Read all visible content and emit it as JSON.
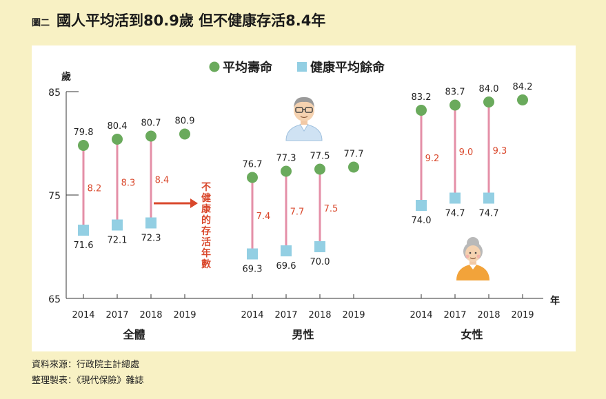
{
  "figure_number": "圖二",
  "title": "國人平均活到80.9歲 但不健康存活8.4年",
  "chart_data": {
    "type": "scatter",
    "y_unit": "歲",
    "x_unit": "年",
    "ylim": [
      65,
      85
    ],
    "y_ticks": [
      65,
      75,
      85
    ],
    "legend": [
      {
        "name": "平均壽命",
        "color": "#6aaa5c",
        "shape": "circle"
      },
      {
        "name": "健康平均餘命",
        "color": "#93cfe3",
        "shape": "square"
      }
    ],
    "groups": [
      {
        "name": "全體",
        "years": [
          "2014",
          "2017",
          "2018",
          "2019"
        ],
        "life_expectancy": [
          79.8,
          80.4,
          80.7,
          80.9
        ],
        "healthy_life_expectancy": [
          71.6,
          72.1,
          72.3,
          null
        ],
        "unhealthy_years": [
          8.2,
          8.3,
          8.4,
          null
        ]
      },
      {
        "name": "男性",
        "years": [
          "2014",
          "2017",
          "2018",
          "2019"
        ],
        "life_expectancy": [
          76.7,
          77.3,
          77.5,
          77.7
        ],
        "healthy_life_expectancy": [
          69.3,
          69.6,
          70.0,
          null
        ],
        "unhealthy_years": [
          7.4,
          7.7,
          7.5,
          null
        ]
      },
      {
        "name": "女性",
        "years": [
          "2014",
          "2017",
          "2018",
          "2019"
        ],
        "life_expectancy": [
          83.2,
          83.7,
          84.0,
          84.2
        ],
        "healthy_life_expectancy": [
          74.0,
          74.7,
          74.7,
          null
        ],
        "unhealthy_years": [
          9.2,
          9.0,
          9.3,
          null
        ]
      }
    ],
    "annotation": "不健康的存活年數",
    "colors": {
      "life": "#6aaa5c",
      "healthy": "#93cfe3",
      "range_line": "#e48fa7",
      "gap_text": "#d9472b",
      "arrow": "#d9472b"
    }
  },
  "source_lines": [
    "資料來源：行政院主計總處",
    "整理製表：《現代保險》雜誌"
  ]
}
